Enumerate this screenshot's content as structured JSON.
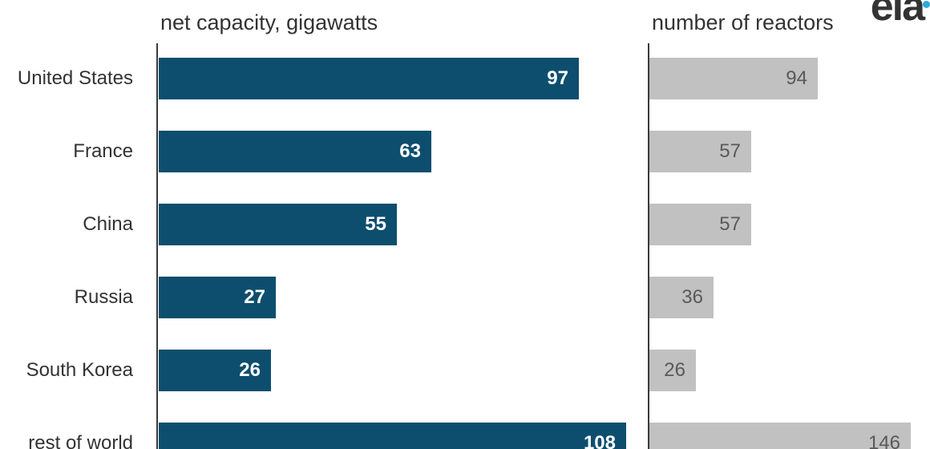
{
  "logo": {
    "text": "eia",
    "dot_color": "#2fa8dc"
  },
  "colors": {
    "capacity_bar": "#0d4e6e",
    "reactors_bar": "#c1c1c1",
    "capacity_value_text": "#ffffff",
    "reactors_value_text": "#595959",
    "label_text": "#333333",
    "axis_line": "#3a3a3a"
  },
  "chart_data": {
    "type": "bar",
    "orientation": "horizontal",
    "layout": "two-panel paired bars, value labels inside bar ends, category labels right-aligned at left, bottom row cropped by viewport",
    "categories": [
      "United States",
      "France",
      "China",
      "Russia",
      "South Korea",
      "rest of world"
    ],
    "series": [
      {
        "name": "net capacity, gigawatts",
        "values": [
          97,
          63,
          55,
          27,
          26,
          108
        ]
      },
      {
        "name": "number of reactors",
        "values": [
          94,
          57,
          57,
          36,
          26,
          146
        ]
      }
    ],
    "grid": false,
    "legend": false
  }
}
